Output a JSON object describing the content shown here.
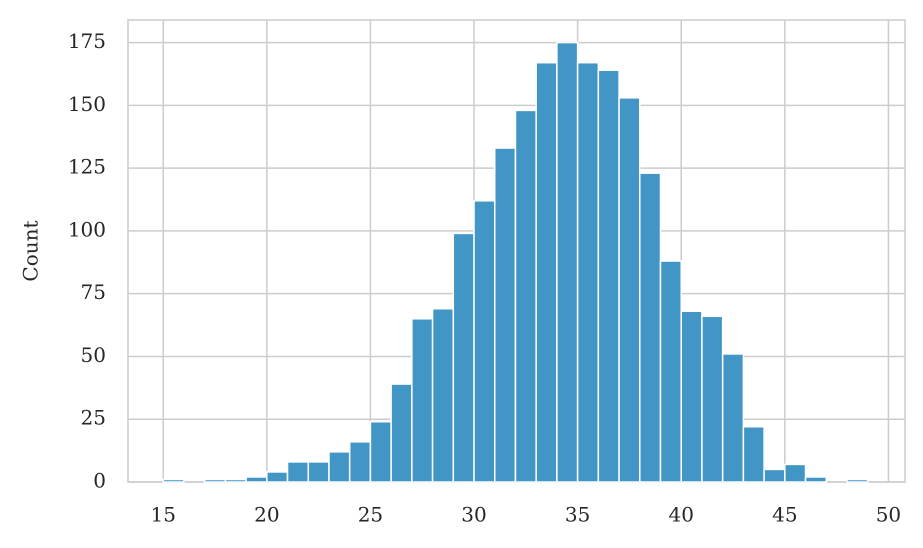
{
  "chart_data": {
    "type": "histogram",
    "y_label": "Count",
    "bins": [
      15,
      16,
      17,
      18,
      19,
      20,
      21,
      22,
      23,
      24,
      25,
      26,
      27,
      28,
      29,
      30,
      31,
      32,
      33,
      34,
      35,
      36,
      37,
      38,
      39,
      40,
      41,
      42,
      43,
      44,
      45,
      46,
      47,
      48,
      49
    ],
    "values": [
      1,
      0,
      1,
      1,
      2,
      4,
      8,
      8,
      12,
      16,
      24,
      39,
      65,
      69,
      99,
      112,
      133,
      148,
      167,
      175,
      167,
      164,
      153,
      123,
      88,
      68,
      66,
      51,
      22,
      5,
      7,
      2,
      0,
      1
    ],
    "color": "#4196c6",
    "xlim": [
      13.3,
      50.8
    ],
    "ylim": [
      0,
      184
    ],
    "xticks": [
      15,
      20,
      25,
      30,
      35,
      40,
      45,
      50
    ],
    "yticks": [
      0,
      25,
      50,
      75,
      100,
      125,
      150,
      175
    ],
    "grid": true
  }
}
